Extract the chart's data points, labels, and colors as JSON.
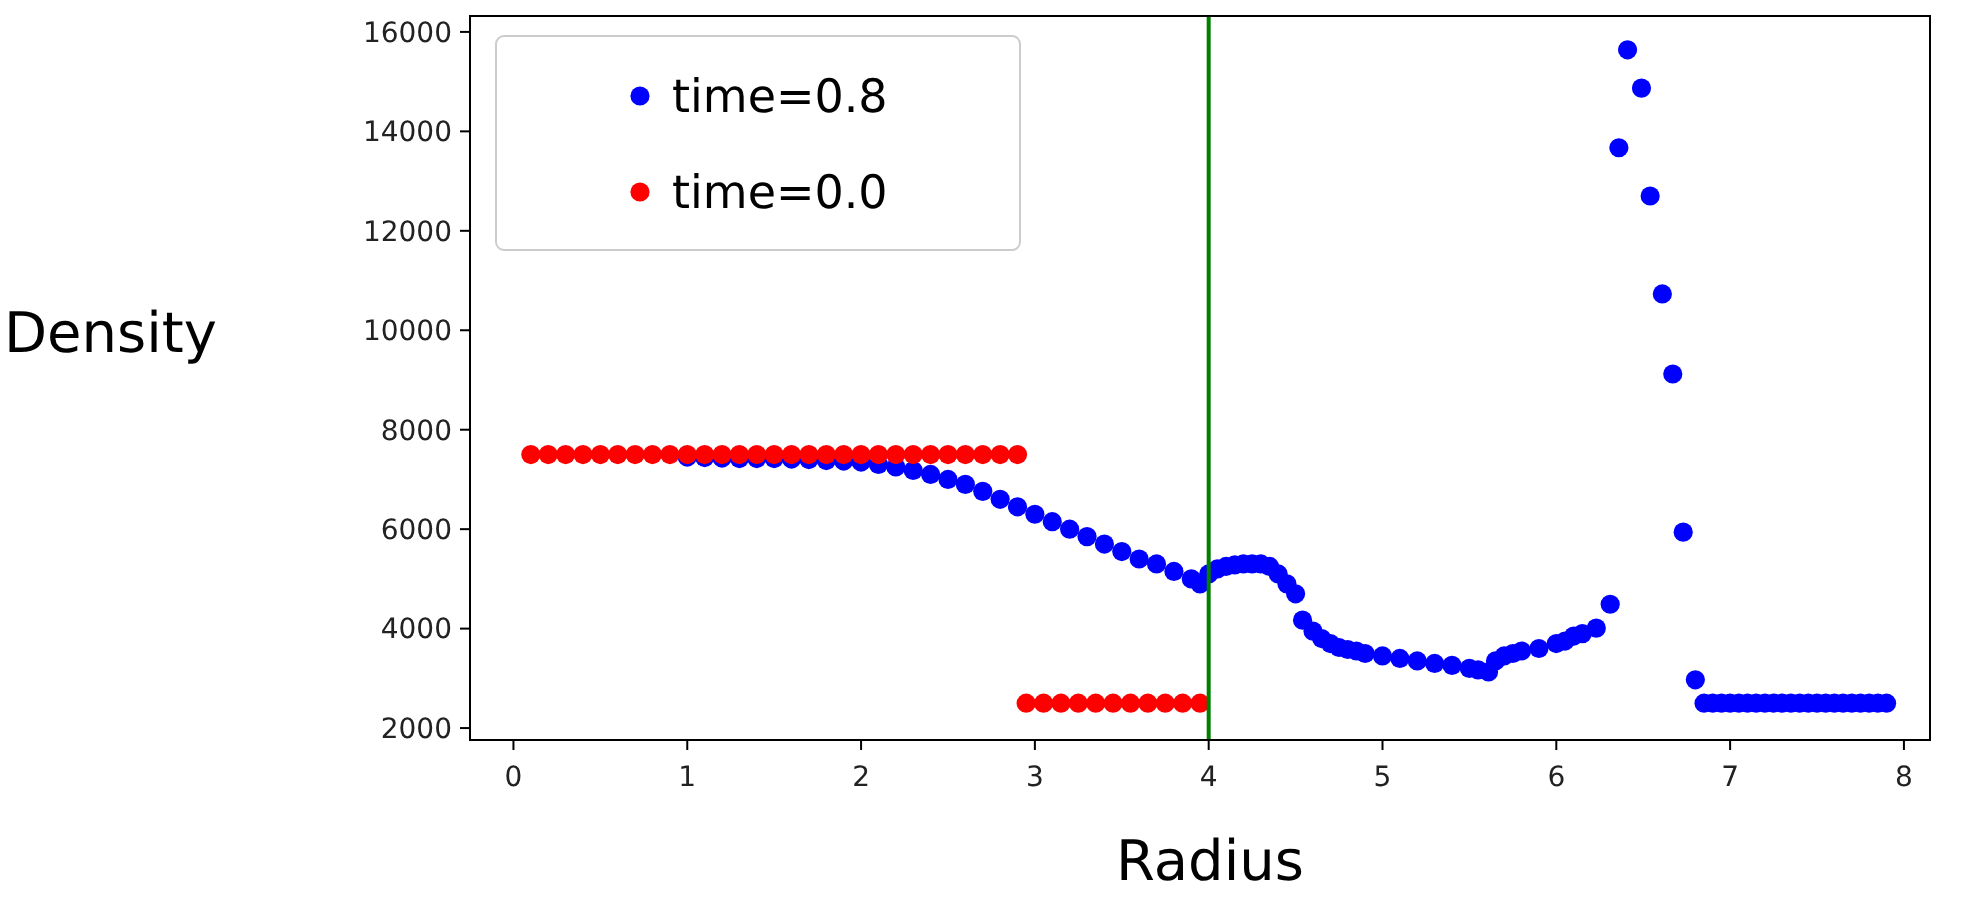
{
  "chart_data": {
    "type": "scatter",
    "xlabel": "Radius",
    "ylabel": "Density",
    "xlim": [
      -0.25,
      8.15
    ],
    "ylim": [
      1760,
      16320
    ],
    "xticks": [
      0,
      1,
      2,
      3,
      4,
      5,
      6,
      7,
      8
    ],
    "yticks": [
      2000,
      4000,
      6000,
      8000,
      10000,
      12000,
      14000,
      16000
    ],
    "legend": "top left",
    "marker": "circle",
    "grid": false,
    "ref_lines": [
      {
        "axis": "x",
        "value": 4.0,
        "color": "#008000"
      }
    ],
    "series": [
      {
        "name": "time=0.8",
        "color": "#0000ff",
        "x": [
          1.0,
          1.1,
          1.2,
          1.3,
          1.4,
          1.5,
          1.6,
          1.7,
          1.8,
          1.9,
          2.0,
          2.1,
          2.2,
          2.3,
          2.4,
          2.5,
          2.6,
          2.7,
          2.8,
          2.9,
          3.0,
          3.1,
          3.2,
          3.3,
          3.4,
          3.5,
          3.6,
          3.7,
          3.8,
          3.9,
          3.95,
          4.0,
          4.05,
          4.1,
          4.15,
          4.2,
          4.25,
          4.3,
          4.35,
          4.4,
          4.45,
          4.5,
          4.54,
          4.6,
          4.65,
          4.7,
          4.75,
          4.8,
          4.85,
          4.9,
          5.0,
          5.1,
          5.2,
          5.3,
          5.4,
          5.5,
          5.55,
          5.61,
          5.65,
          5.7,
          5.75,
          5.8,
          5.9,
          6.0,
          6.05,
          6.1,
          6.15,
          6.23,
          6.31,
          6.36,
          6.41,
          6.49,
          6.54,
          6.61,
          6.67,
          6.73,
          6.8,
          6.85,
          6.9,
          6.95,
          7.0,
          7.05,
          7.1,
          7.15,
          7.2,
          7.25,
          7.3,
          7.35,
          7.4,
          7.45,
          7.5,
          7.55,
          7.6,
          7.65,
          7.7,
          7.75,
          7.8,
          7.85,
          7.9
        ],
        "values": [
          7450,
          7440,
          7430,
          7420,
          7420,
          7420,
          7410,
          7400,
          7380,
          7370,
          7350,
          7300,
          7250,
          7180,
          7100,
          7000,
          6900,
          6760,
          6600,
          6450,
          6300,
          6150,
          6000,
          5850,
          5700,
          5550,
          5400,
          5300,
          5150,
          5000,
          4900,
          5100,
          5200,
          5250,
          5280,
          5300,
          5300,
          5300,
          5250,
          5100,
          4900,
          4700,
          4170,
          3950,
          3800,
          3700,
          3620,
          3580,
          3550,
          3500,
          3450,
          3400,
          3350,
          3300,
          3260,
          3200,
          3170,
          3130,
          3350,
          3450,
          3500,
          3550,
          3600,
          3700,
          3750,
          3850,
          3900,
          4010,
          4490,
          13670,
          15640,
          14870,
          12700,
          10730,
          9120,
          5940,
          2970,
          2500,
          2500,
          2500,
          2500,
          2500,
          2500,
          2500,
          2500,
          2500,
          2500,
          2500,
          2500,
          2500,
          2500,
          2500,
          2500,
          2500,
          2500,
          2500,
          2500,
          2500,
          2500
        ]
      },
      {
        "name": "time=0.0",
        "color": "#ff0000",
        "x": [
          0.1,
          0.2,
          0.3,
          0.4,
          0.5,
          0.6,
          0.7,
          0.8,
          0.9,
          1.0,
          1.1,
          1.2,
          1.3,
          1.4,
          1.5,
          1.6,
          1.7,
          1.8,
          1.9,
          2.0,
          2.1,
          2.2,
          2.3,
          2.4,
          2.5,
          2.6,
          2.7,
          2.8,
          2.9,
          2.95,
          3.05,
          3.15,
          3.25,
          3.35,
          3.45,
          3.55,
          3.65,
          3.75,
          3.85,
          3.95
        ],
        "values": [
          7500,
          7500,
          7500,
          7500,
          7500,
          7500,
          7500,
          7500,
          7500,
          7500,
          7500,
          7500,
          7500,
          7500,
          7500,
          7500,
          7500,
          7500,
          7500,
          7500,
          7500,
          7500,
          7500,
          7500,
          7500,
          7500,
          7500,
          7500,
          7500,
          2500,
          2500,
          2500,
          2500,
          2500,
          2500,
          2500,
          2500,
          2500,
          2500,
          2500
        ]
      }
    ]
  }
}
